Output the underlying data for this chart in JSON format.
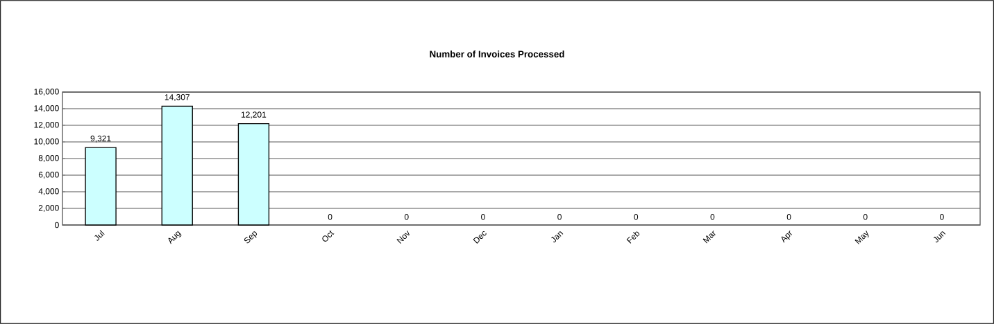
{
  "chart_data": {
    "type": "bar",
    "title": "Number of Invoices Processed",
    "categories": [
      "Jul",
      "Aug",
      "Sep",
      "Oct",
      "Nov",
      "Dec",
      "Jan",
      "Feb",
      "Mar",
      "Apr",
      "May",
      "Jun"
    ],
    "values": [
      9321,
      14307,
      12201,
      0,
      0,
      0,
      0,
      0,
      0,
      0,
      0,
      0
    ],
    "value_labels": [
      "9,321",
      "14,307",
      "12,201",
      "0",
      "0",
      "0",
      "0",
      "0",
      "0",
      "0",
      "0",
      "0"
    ],
    "color": "#ccffff",
    "ylim": [
      0,
      16000
    ],
    "yticks": [
      {
        "value": 0,
        "label": "0"
      },
      {
        "value": 2000,
        "label": "2,000"
      },
      {
        "value": 4000,
        "label": "4,000"
      },
      {
        "value": 6000,
        "label": "6,000"
      },
      {
        "value": 8000,
        "label": "8,000"
      },
      {
        "value": 10000,
        "label": "10,000"
      },
      {
        "value": 12000,
        "label": "12,000"
      },
      {
        "value": 14000,
        "label": "14,000"
      },
      {
        "value": 16000,
        "label": "16,000"
      }
    ],
    "grid": "y"
  }
}
